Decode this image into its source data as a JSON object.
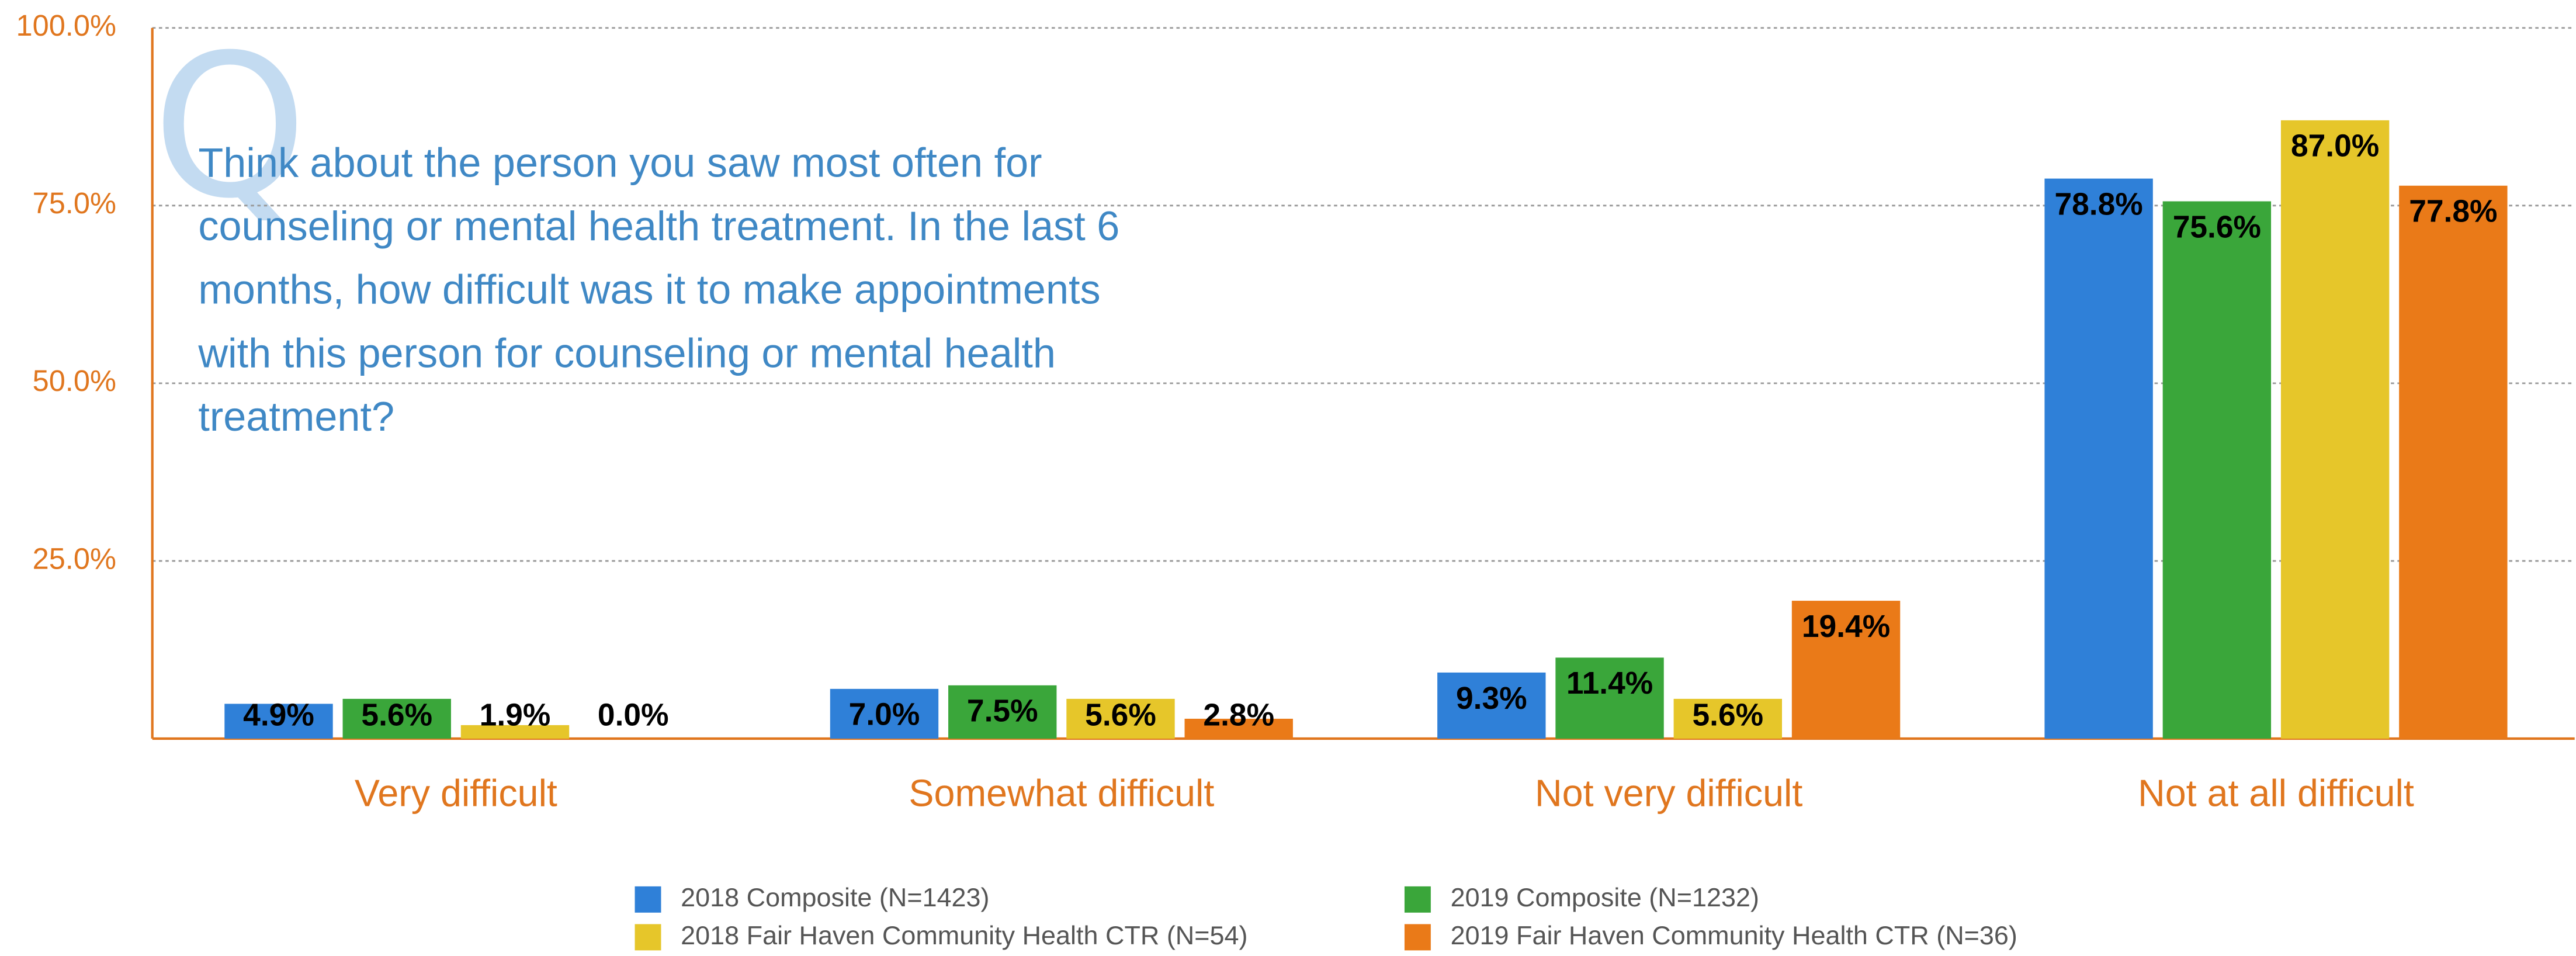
{
  "chart_data": {
    "type": "bar",
    "annotation": "Q",
    "title": [
      "Think about the person you saw most often for",
      "counseling or mental health treatment. In the last 6",
      "months, how difficult was it to make appointments",
      "with this person for counseling or mental health",
      "treatment?"
    ],
    "categories": [
      "Very difficult",
      "Somewhat difficult",
      "Not very difficult",
      "Not at all difficult"
    ],
    "series": [
      {
        "name": "2018 Composite (N=1423)",
        "color": "#2f80d8",
        "values": [
          4.9,
          7.0,
          9.3,
          78.8
        ],
        "value_labels": [
          "4.9%",
          "7.0%",
          "9.3%",
          "78.8%"
        ]
      },
      {
        "name": "2019 Composite (N=1232)",
        "color": "#3aa63a",
        "values": [
          5.6,
          7.5,
          11.4,
          75.6
        ],
        "value_labels": [
          "5.6%",
          "7.5%",
          "11.4%",
          "75.6%"
        ]
      },
      {
        "name": "2018 Fair Haven Community Health CTR (N=54)",
        "color": "#e6c62a",
        "values": [
          1.9,
          5.6,
          5.6,
          87.0
        ],
        "value_labels": [
          "1.9%",
          "5.6%",
          "5.6%",
          "87.0%"
        ]
      },
      {
        "name": "2019 Fair Haven Community Health CTR (N=36)",
        "color": "#ea7a18",
        "values": [
          0.0,
          2.8,
          19.4,
          77.8
        ],
        "value_labels": [
          "0.0%",
          "2.8%",
          "19.4%",
          "77.8%"
        ]
      }
    ],
    "ylim": [
      0,
      100
    ],
    "yticks": [
      {
        "value": 25,
        "label": "25.0%"
      },
      {
        "value": 50,
        "label": "50.0%"
      },
      {
        "value": 75,
        "label": "75.0%"
      },
      {
        "value": 100,
        "label": "100.0%"
      }
    ],
    "grid": true
  }
}
